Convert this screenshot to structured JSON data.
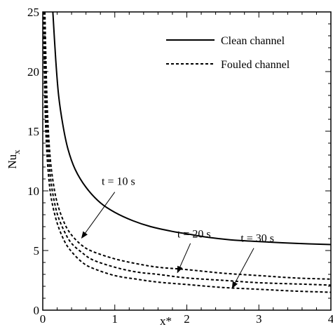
{
  "chart_data": {
    "type": "line",
    "title": "",
    "xlabel": "x*",
    "ylabel_main": "Nu",
    "ylabel_sub": "x",
    "xlim": [
      0,
      4
    ],
    "ylim": [
      0,
      25
    ],
    "grid": false,
    "legend_position": "top-right",
    "x_major_ticks": [
      0,
      1,
      2,
      3,
      4
    ],
    "x_tick_labels": [
      "0",
      "1",
      "2",
      "3",
      "4"
    ],
    "y_major_ticks": [
      0,
      5,
      10,
      15,
      20,
      25
    ],
    "y_tick_labels": [
      "0",
      "5",
      "10",
      "15",
      "20",
      "25"
    ],
    "series": [
      {
        "name": "Clean channel",
        "style": "solid",
        "color": "#000000",
        "points": [
          [
            0.14,
            25.0
          ],
          [
            0.18,
            21.0
          ],
          [
            0.22,
            18.0
          ],
          [
            0.28,
            15.5
          ],
          [
            0.35,
            13.5
          ],
          [
            0.45,
            11.8
          ],
          [
            0.6,
            10.3
          ],
          [
            0.8,
            9.0
          ],
          [
            1.0,
            8.2
          ],
          [
            1.25,
            7.5
          ],
          [
            1.5,
            7.0
          ],
          [
            1.8,
            6.6
          ],
          [
            2.0,
            6.4
          ],
          [
            2.3,
            6.1
          ],
          [
            2.6,
            5.9
          ],
          [
            3.0,
            5.75
          ],
          [
            3.5,
            5.6
          ],
          [
            4.0,
            5.5
          ]
        ]
      },
      {
        "name": "Fouled channel",
        "style": "dashed",
        "color": "#000000",
        "points": [
          [
            0.03,
            25.0
          ],
          [
            0.05,
            19.5
          ],
          [
            0.07,
            16.0
          ],
          [
            0.1,
            13.0
          ],
          [
            0.14,
            10.9
          ],
          [
            0.2,
            9.0
          ],
          [
            0.3,
            7.3
          ],
          [
            0.4,
            6.3
          ],
          [
            0.55,
            5.4
          ],
          [
            0.7,
            4.9
          ],
          [
            1.0,
            4.3
          ],
          [
            1.3,
            3.9
          ],
          [
            1.6,
            3.6
          ],
          [
            2.0,
            3.4
          ],
          [
            2.5,
            3.1
          ],
          [
            3.0,
            2.9
          ],
          [
            3.5,
            2.7
          ],
          [
            4.0,
            2.6
          ]
        ]
      },
      {
        "name": "",
        "style": "dashed",
        "color": "#000000",
        "points": [
          [
            0.02,
            25.0
          ],
          [
            0.04,
            18.5
          ],
          [
            0.06,
            15.0
          ],
          [
            0.09,
            12.2
          ],
          [
            0.13,
            10.1
          ],
          [
            0.2,
            8.1
          ],
          [
            0.3,
            6.6
          ],
          [
            0.4,
            5.6
          ],
          [
            0.55,
            4.8
          ],
          [
            0.7,
            4.2
          ],
          [
            1.0,
            3.6
          ],
          [
            1.3,
            3.2
          ],
          [
            1.6,
            3.0
          ],
          [
            2.0,
            2.7
          ],
          [
            2.5,
            2.5
          ],
          [
            3.0,
            2.3
          ],
          [
            3.5,
            2.2
          ],
          [
            4.0,
            2.1
          ]
        ]
      },
      {
        "name": "",
        "style": "dashed",
        "color": "#000000",
        "points": [
          [
            0.01,
            25.0
          ],
          [
            0.03,
            17.5
          ],
          [
            0.05,
            14.0
          ],
          [
            0.08,
            11.3
          ],
          [
            0.12,
            9.3
          ],
          [
            0.2,
            7.3
          ],
          [
            0.3,
            5.8
          ],
          [
            0.4,
            4.9
          ],
          [
            0.55,
            4.0
          ],
          [
            0.7,
            3.5
          ],
          [
            1.0,
            2.9
          ],
          [
            1.3,
            2.6
          ],
          [
            1.6,
            2.35
          ],
          [
            2.0,
            2.15
          ],
          [
            2.5,
            1.9
          ],
          [
            3.0,
            1.75
          ],
          [
            3.5,
            1.6
          ],
          [
            4.0,
            1.5
          ]
        ]
      }
    ],
    "annotations": [
      {
        "text": "t = 10 s",
        "label_at": [
          1.05,
          10.5
        ],
        "arrow_from": [
          1.0,
          9.9
        ],
        "arrow_to": [
          0.54,
          6.05
        ]
      },
      {
        "text": "t = 20 s",
        "label_at": [
          2.1,
          6.1
        ],
        "arrow_from": [
          2.05,
          5.6
        ],
        "arrow_to": [
          1.87,
          3.15
        ]
      },
      {
        "text": "t = 30 s",
        "label_at": [
          2.98,
          5.75
        ],
        "arrow_from": [
          2.93,
          5.2
        ],
        "arrow_to": [
          2.63,
          1.85
        ]
      }
    ]
  }
}
